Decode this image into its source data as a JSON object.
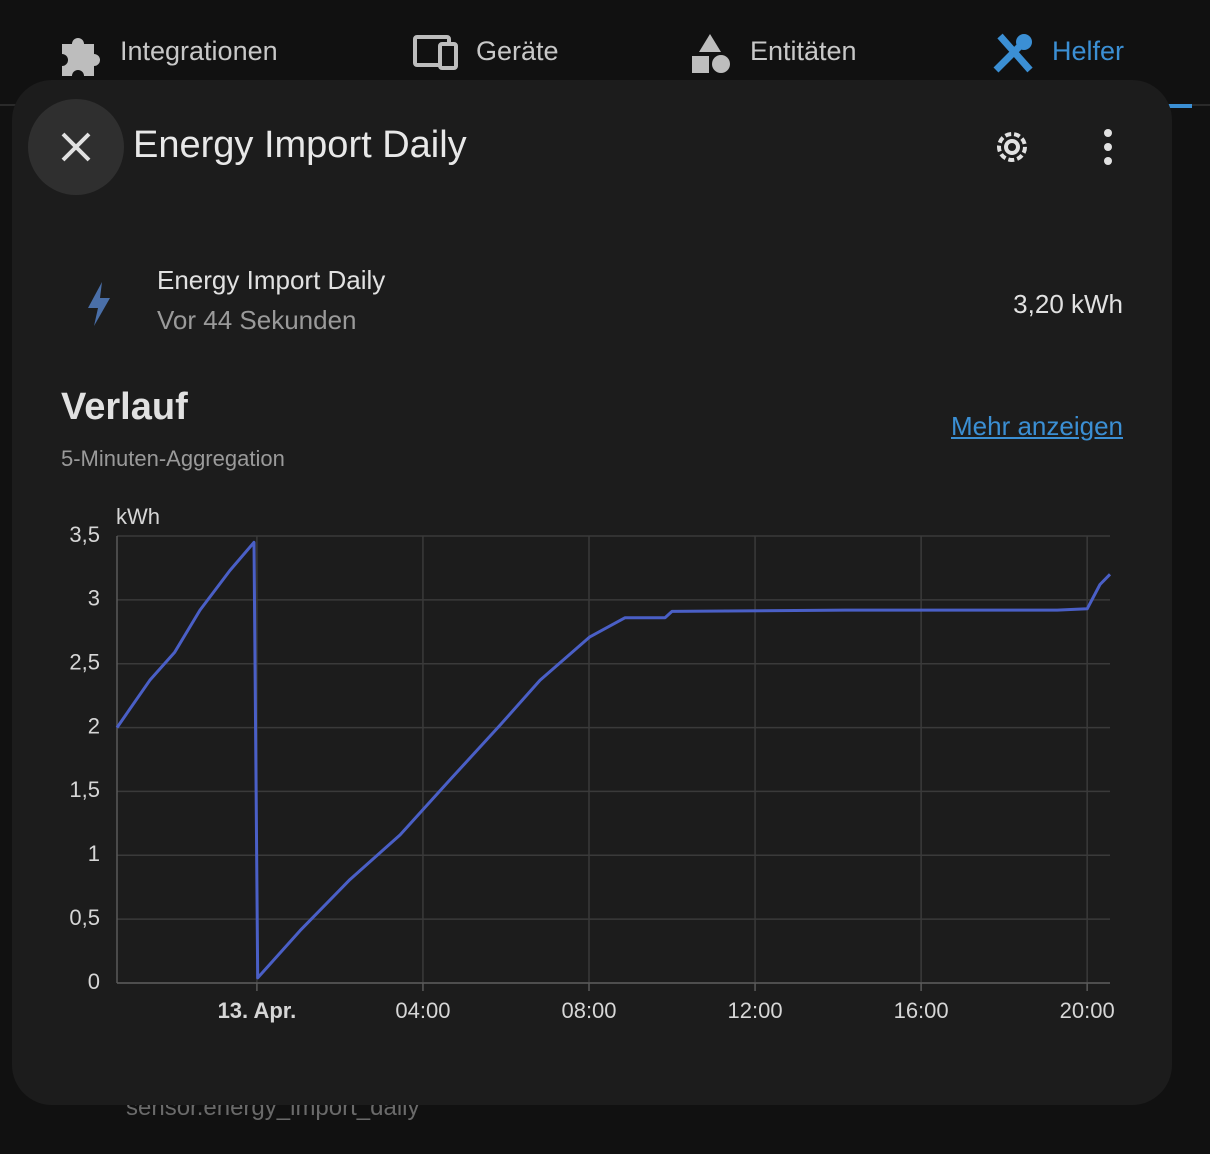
{
  "tabs": [
    "Integrationen",
    "Geräte",
    "Entitäten",
    "Helfer"
  ],
  "background_text": "sensor.energy_import_daily",
  "dialog": {
    "title": "Energy Import Daily"
  },
  "entity": {
    "name": "Energy Import Daily",
    "last_changed": "Vor 44 Sekunden",
    "state": "3,20 kWh"
  },
  "history": {
    "title": "Verlauf",
    "subtitle": "5-Minuten-Aggregation",
    "link": "Mehr anzeigen"
  },
  "chart_data": {
    "type": "line",
    "y_label": "kWh",
    "color": "#4a5fc6",
    "grid": true,
    "x": [
      -3.37,
      -2.58,
      -1.98,
      -1.37,
      -0.65,
      -0.07,
      0.02,
      1.04,
      2.24,
      3.45,
      4.65,
      5.86,
      6.82,
      8.02,
      8.87,
      9.83,
      10.0,
      14.17,
      19.28,
      20.0,
      20.31,
      20.55
    ],
    "values": [
      2.0,
      2.37,
      2.59,
      2.92,
      3.23,
      3.45,
      0.04,
      0.41,
      0.81,
      1.16,
      1.59,
      2.02,
      2.37,
      2.71,
      2.86,
      2.86,
      2.91,
      2.92,
      2.92,
      2.93,
      3.12,
      3.2
    ],
    "xlim": [
      -3.37,
      20.55
    ],
    "xticks": [
      {
        "value": 0,
        "label": "13. Apr."
      },
      {
        "value": 4,
        "label": "04:00"
      },
      {
        "value": 8,
        "label": "08:00"
      },
      {
        "value": 12,
        "label": "12:00"
      },
      {
        "value": 16,
        "label": "16:00"
      },
      {
        "value": 20,
        "label": "20:00"
      }
    ],
    "ylim": [
      0,
      3.5
    ],
    "yticks": [
      0,
      {
        "value": 0.5,
        "label": "0,5"
      },
      1,
      {
        "value": 1.5,
        "label": "1,5"
      },
      2,
      {
        "value": 2.5,
        "label": "2,5"
      },
      3,
      {
        "value": 3.5,
        "label": "3,5"
      }
    ]
  }
}
